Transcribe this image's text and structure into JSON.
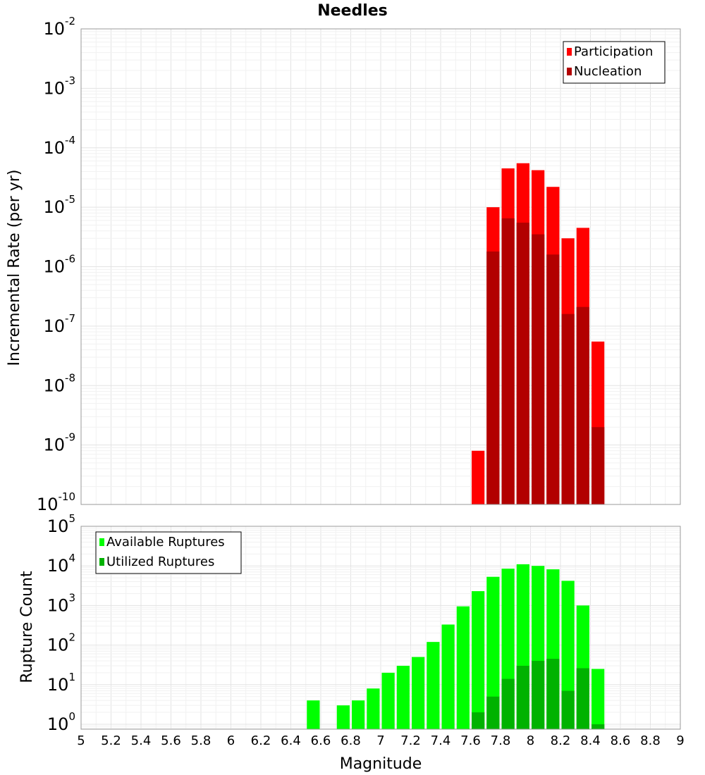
{
  "chart_data": [
    {
      "type": "bar",
      "title": "Needles",
      "xlabel": "",
      "ylabel": "Incremental Rate (per yr)",
      "yscale": "log",
      "xlim": [
        5,
        9
      ],
      "ylim": [
        1e-10,
        0.01
      ],
      "bar_width": 0.1,
      "grid": true,
      "legend_position": "top-right",
      "series": [
        {
          "name": "Participation",
          "color": "#ff0000",
          "x": [
            7.7,
            7.8,
            7.9,
            8.0,
            8.1,
            8.2,
            8.3,
            8.4,
            8.5,
            8.6
          ],
          "values": [
            8e-10,
            1e-05,
            4.5e-05,
            5.5e-05,
            4.2e-05,
            2.2e-05,
            3e-06,
            4.5e-06,
            5.5e-08,
            0
          ]
        },
        {
          "name": "Nucleation",
          "color": "#b20000",
          "x": [
            7.8,
            7.9,
            8.0,
            8.1,
            8.2,
            8.3,
            8.4,
            8.5
          ],
          "values": [
            1.8e-06,
            6.5e-06,
            5.5e-06,
            3.5e-06,
            1.6e-06,
            1.6e-07,
            2.1e-07,
            2e-09
          ]
        }
      ]
    },
    {
      "type": "bar",
      "title": "",
      "xlabel": "Magnitude",
      "ylabel": "Rupture Count",
      "yscale": "log",
      "xlim": [
        5,
        9
      ],
      "ylim": [
        0.75,
        100000
      ],
      "x_ticks": [
        "5",
        "5.2",
        "5.4",
        "5.6",
        "5.8",
        "6",
        "6.2",
        "6.4",
        "6.6",
        "6.8",
        "7",
        "7.2",
        "7.4",
        "7.6",
        "7.8",
        "8",
        "8.2",
        "8.4",
        "8.6",
        "8.8",
        "9"
      ],
      "bar_width": 0.1,
      "grid": true,
      "legend_position": "top-left",
      "series": [
        {
          "name": "Available Ruptures",
          "color": "#00ff00",
          "x": [
            6.6,
            6.8,
            6.9,
            7.0,
            7.1,
            7.2,
            7.3,
            7.4,
            7.5,
            7.6,
            7.7,
            7.8,
            7.9,
            8.0,
            8.1,
            8.2,
            8.3,
            8.4,
            8.5
          ],
          "values": [
            4,
            3,
            4,
            8,
            20,
            30,
            50,
            120,
            330,
            950,
            2300,
            5300,
            8500,
            11000,
            10000,
            8200,
            4200,
            1000,
            25
          ]
        },
        {
          "name": "Utilized Ruptures",
          "color": "#00b200",
          "x": [
            7.7,
            7.8,
            7.9,
            8.0,
            8.1,
            8.2,
            8.3,
            8.4,
            8.5
          ],
          "values": [
            2,
            5,
            14,
            30,
            40,
            45,
            7,
            26,
            1
          ]
        }
      ]
    }
  ]
}
